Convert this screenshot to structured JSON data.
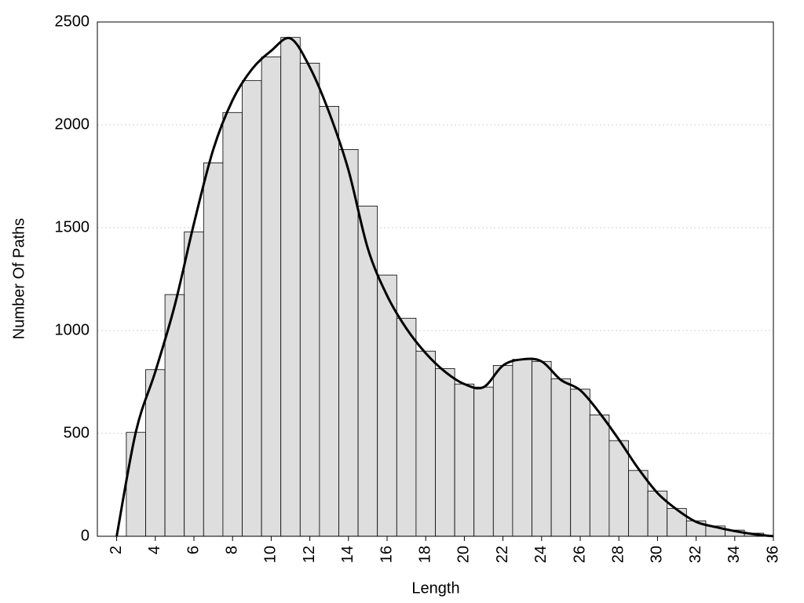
{
  "chart_data": {
    "type": "histogram",
    "x_label": "Length",
    "y_label": "Number Of Paths",
    "bins": [
      2.5,
      3.5,
      4.5,
      5.5,
      6.5,
      7.5,
      8.5,
      9.5,
      10.5,
      11.5,
      12.5,
      13.5,
      14.5,
      15.5,
      16.5,
      17.5,
      18.5,
      19.5,
      20.5,
      21.5,
      22.5,
      23.5,
      24.5,
      25.5,
      26.5,
      27.5,
      28.5,
      29.5,
      30.5,
      31.5,
      32.5,
      33.5,
      34.5,
      35.5
    ],
    "values": [
      505,
      810,
      1175,
      1480,
      1815,
      2060,
      2215,
      2330,
      2425,
      2300,
      2090,
      1880,
      1605,
      1270,
      1060,
      900,
      815,
      740,
      725,
      830,
      860,
      850,
      765,
      715,
      590,
      465,
      320,
      220,
      135,
      75,
      50,
      30,
      15
    ],
    "color": "#dedede",
    "curve": {
      "type": "line",
      "color": "#000000",
      "x": [
        2,
        3,
        4,
        5,
        6,
        7,
        8,
        9,
        10,
        11,
        12,
        13,
        14,
        15,
        16,
        17,
        18,
        19,
        20,
        21,
        22,
        23,
        24,
        25,
        26,
        27,
        28,
        29,
        30,
        31,
        32,
        33,
        34,
        35,
        36
      ],
      "values": [
        0,
        510,
        800,
        1120,
        1520,
        1880,
        2120,
        2270,
        2360,
        2420,
        2280,
        2060,
        1780,
        1400,
        1170,
        1010,
        890,
        800,
        740,
        725,
        830,
        860,
        850,
        760,
        710,
        600,
        470,
        330,
        210,
        130,
        70,
        45,
        25,
        10,
        0
      ]
    },
    "xlim": [
      1,
      36
    ],
    "ylim": [
      0,
      2500
    ],
    "xticks": [
      2,
      4,
      6,
      8,
      10,
      12,
      14,
      16,
      18,
      20,
      22,
      24,
      26,
      28,
      30,
      32,
      34,
      36
    ],
    "yticks": [
      0,
      500,
      1000,
      1500,
      2000,
      2500
    ],
    "grid": true
  }
}
